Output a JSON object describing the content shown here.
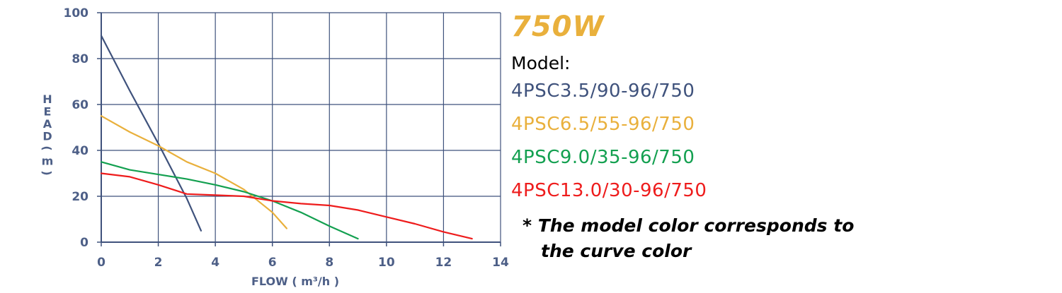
{
  "chart_data": {
    "type": "line",
    "xlabel": "FLOW ( m³/h )",
    "ylabel": "HEAD ( m )",
    "xlim": [
      0,
      14
    ],
    "ylim": [
      0,
      100
    ],
    "x_ticks": [
      "0",
      "2",
      "4",
      "6",
      "8",
      "10",
      "12",
      "14"
    ],
    "y_ticks": [
      "0",
      "20",
      "40",
      "60",
      "80",
      "100"
    ],
    "grid": true,
    "series": [
      {
        "name": "4PSC3.5/90-96/750",
        "color": "#3f527c",
        "x": [
          0,
          1,
          2,
          3,
          3.5
        ],
        "y": [
          90,
          66,
          43,
          19,
          5
        ]
      },
      {
        "name": "4PSC6.5/55-96/750",
        "color": "#e9b03c",
        "x": [
          0,
          1,
          2,
          3,
          4,
          5,
          6,
          6.5
        ],
        "y": [
          55,
          48,
          42,
          35,
          30,
          23,
          13,
          6
        ]
      },
      {
        "name": "4PSC9.0/35-96/750",
        "color": "#13a050",
        "x": [
          0,
          1,
          2,
          3,
          4,
          5,
          6,
          7,
          8,
          9
        ],
        "y": [
          35,
          31.5,
          29.5,
          27.5,
          25,
          22,
          18,
          13,
          7,
          1.5
        ]
      },
      {
        "name": "4PSC13.0/30-96/750",
        "color": "#ee1c1c",
        "x": [
          0,
          1,
          2,
          3,
          4,
          5,
          6,
          7,
          8,
          9,
          10,
          11,
          12,
          13
        ],
        "y": [
          30,
          28.5,
          25,
          21,
          20.5,
          20,
          18,
          16.8,
          16,
          14,
          11,
          8,
          4.5,
          1.5
        ]
      }
    ]
  },
  "legend": {
    "power": "750W",
    "model_label": "Model:",
    "models": [
      {
        "text": "4PSC3.5/90-96/750",
        "color": "#3f527c"
      },
      {
        "text": "4PSC6.5/55-96/750",
        "color": "#e9b03c"
      },
      {
        "text": "4PSC9.0/35-96/750",
        "color": "#13a050"
      },
      {
        "text": "4PSC13.0/30-96/750",
        "color": "#ee1c1c"
      }
    ],
    "note_line1": "* The model color corresponds to",
    "note_line2": "the curve color"
  },
  "colors": {
    "axis": "#3f527c",
    "grid": "#3f527c",
    "tick_text": "#4d5f87"
  }
}
